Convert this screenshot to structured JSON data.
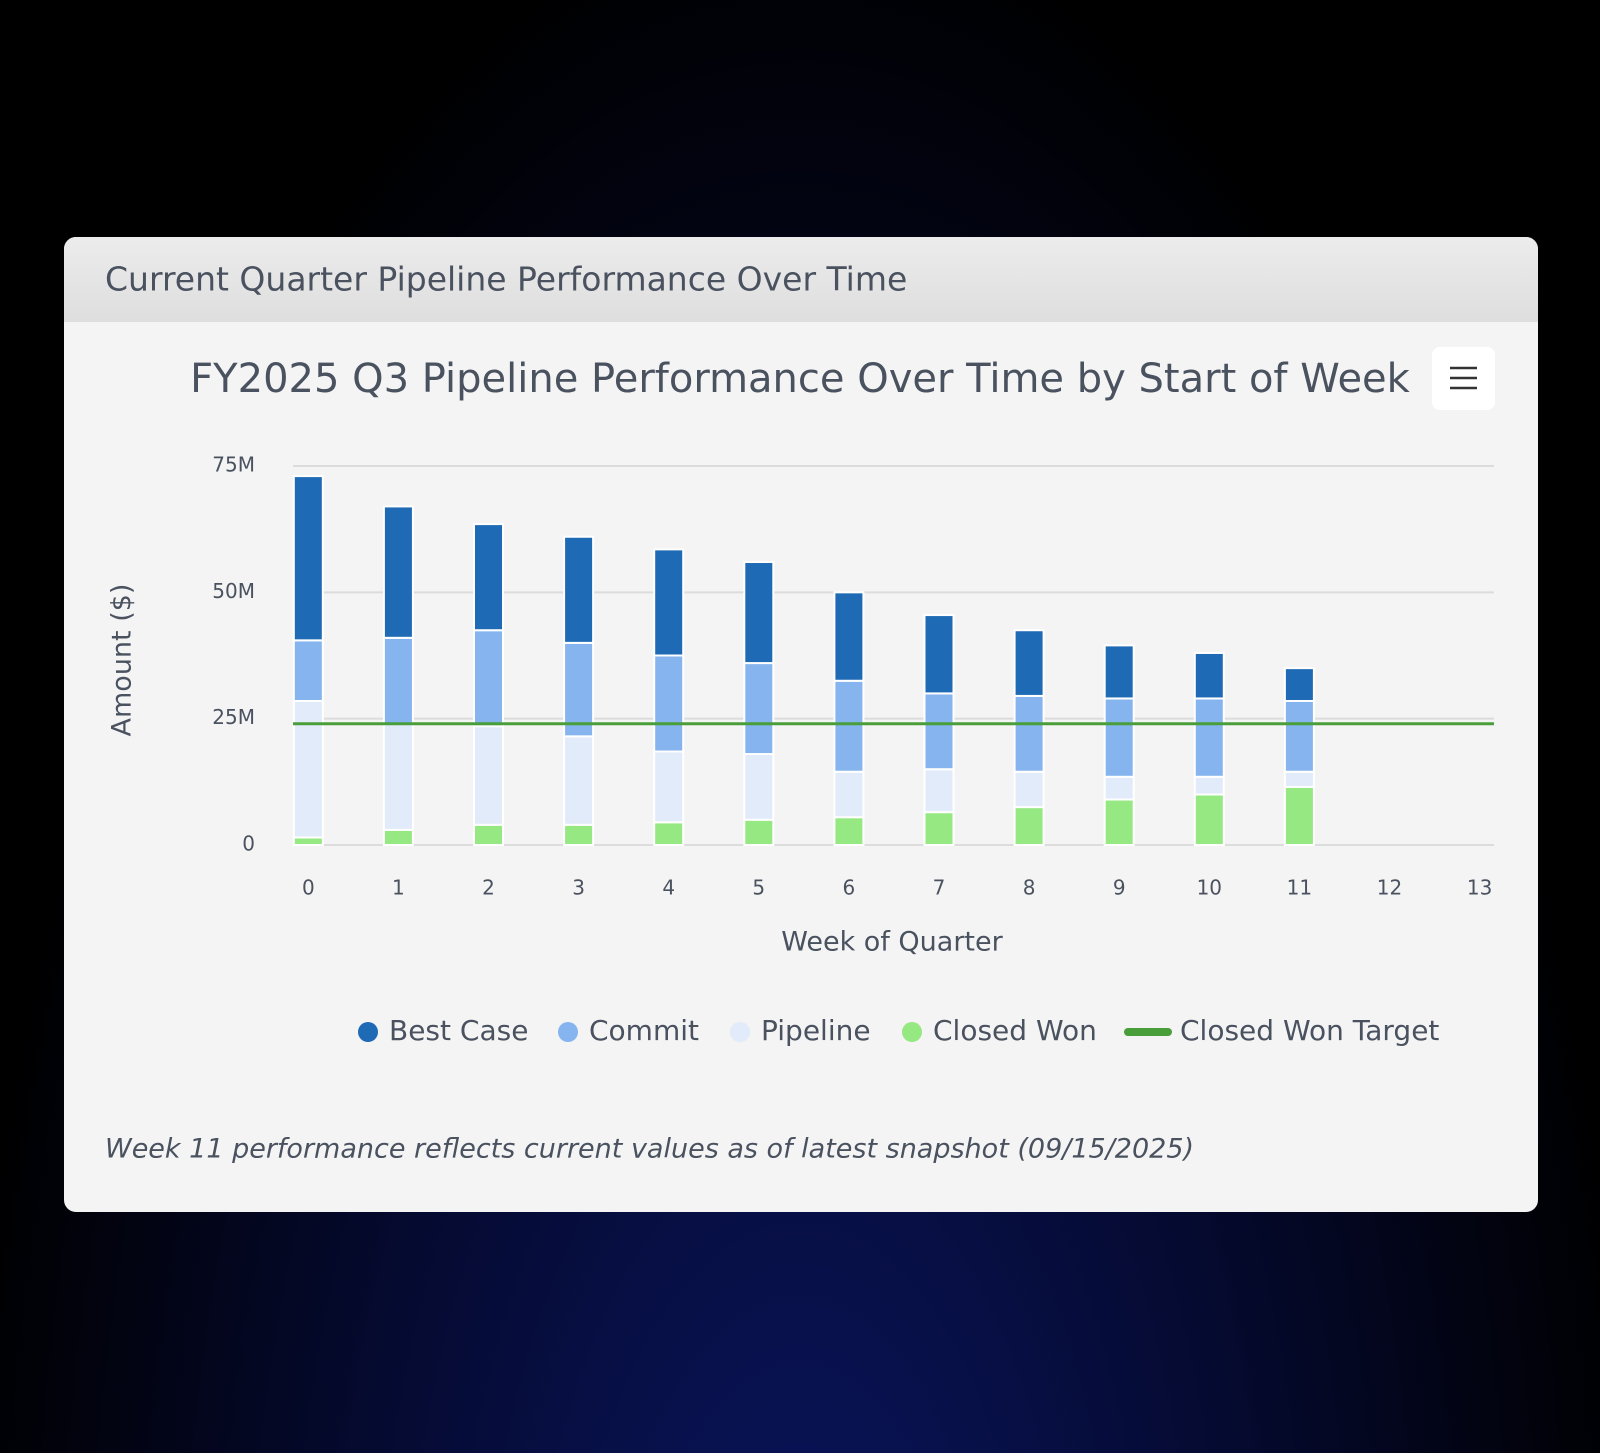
{
  "header": {
    "title": "Current Quarter Pipeline Performance Over Time"
  },
  "chart_data": {
    "type": "stacked_bar",
    "title": "FY2025 Q3 Pipeline Performance Over Time by Start of Week",
    "x_label": "Week of Quarter",
    "y_label": "Amount ($)",
    "x": [
      0,
      1,
      2,
      3,
      4,
      5,
      6,
      7,
      8,
      9,
      10,
      11
    ],
    "xlim": [
      -0.17,
      13.16
    ],
    "xticks": [
      0,
      1,
      2,
      3,
      4,
      5,
      6,
      7,
      8,
      9,
      10,
      11,
      12,
      13
    ],
    "ylim": [
      0,
      75000000
    ],
    "yticks": [
      0,
      {
        "value": 25000000,
        "label": "25M"
      },
      {
        "value": 50000000,
        "label": "50M"
      },
      {
        "value": 75000000,
        "label": "75M"
      }
    ],
    "grid": true,
    "series": [
      {
        "name": "Closed Won",
        "color": "#95e882",
        "values": [
          1500000,
          3000000,
          4000000,
          4000000,
          4500000,
          5000000,
          5500000,
          6500000,
          7500000,
          9000000,
          10000000,
          11500000
        ]
      },
      {
        "name": "Pipeline",
        "color": "#e1ebfa",
        "values": [
          27000000,
          21000000,
          19500000,
          17500000,
          14000000,
          13000000,
          9000000,
          8500000,
          7000000,
          4500000,
          3500000,
          3000000
        ]
      },
      {
        "name": "Commit",
        "color": "#85b4ee",
        "values": [
          12000000,
          17000000,
          19000000,
          18500000,
          19000000,
          18000000,
          18000000,
          15000000,
          15000000,
          15500000,
          15500000,
          14000000
        ]
      },
      {
        "name": "Best Case",
        "color": "#1f6ab4",
        "values": [
          32500000,
          26000000,
          21000000,
          21000000,
          21000000,
          20000000,
          17500000,
          15500000,
          13000000,
          10500000,
          9000000,
          6500000
        ]
      }
    ],
    "target": {
      "name": "Closed Won Target",
      "color": "#4a9e3a",
      "value": 24000000
    }
  },
  "note": "Week 11 performance reflects current values as of latest snapshot (09/15/2025)"
}
